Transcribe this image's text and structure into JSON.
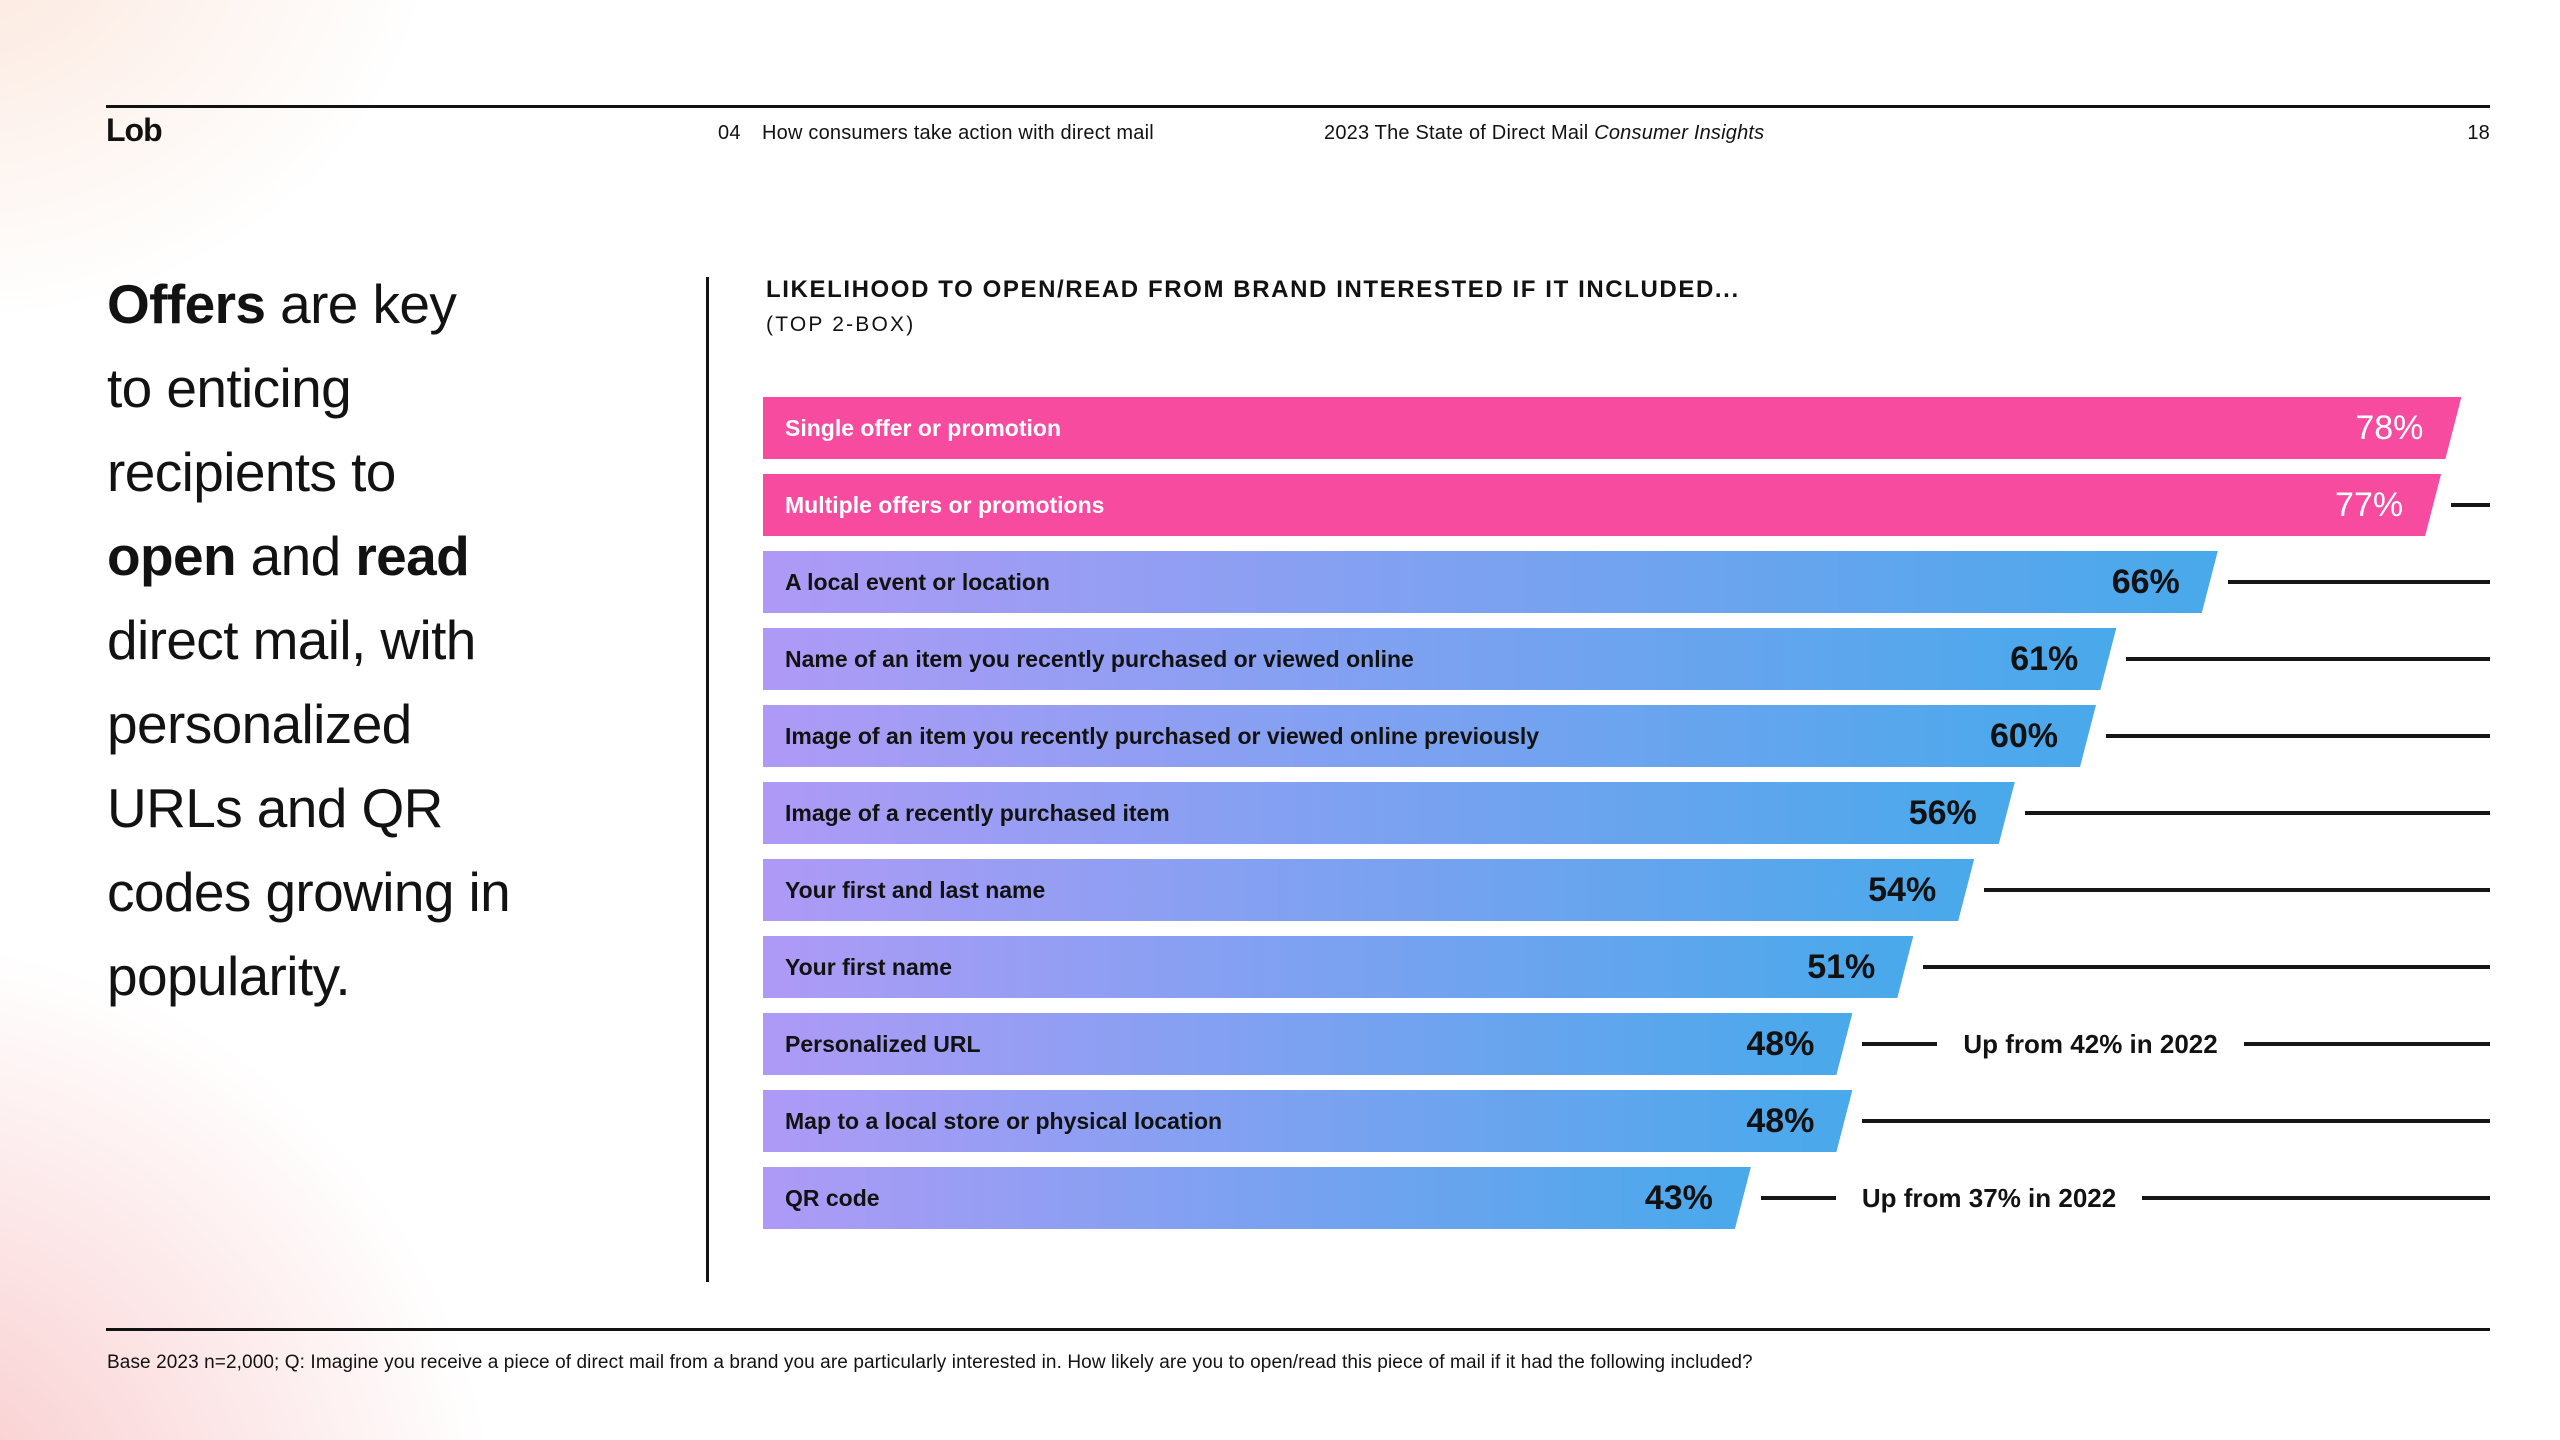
{
  "header": {
    "logo": "Lob",
    "section_number": "04",
    "section_title": "How consumers take action with direct mail",
    "report_title": "2023 The State of Direct Mail",
    "report_title_italic": "Consumer Insights",
    "page_number": "18"
  },
  "headline": {
    "parts": [
      {
        "text": "Offers",
        "bold": true
      },
      {
        "text": " are key\nto enticing\nrecipients to\n",
        "bold": false
      },
      {
        "text": "open",
        "bold": true
      },
      {
        "text": " and ",
        "bold": false
      },
      {
        "text": "read",
        "bold": true
      },
      {
        "text": "\ndirect mail, with\npersonalized\nURLs and QR\ncodes growing in\npopularity.",
        "bold": false
      }
    ]
  },
  "chart_data": {
    "type": "bar",
    "orientation": "horizontal",
    "title": "LIKELIHOOD TO OPEN/READ FROM BRAND INTERESTED IF IT INCLUDED...",
    "subtitle": "(TOP 2-BOX)",
    "value_unit": "percent",
    "xlim": [
      0,
      78
    ],
    "grid": false,
    "legend": "none",
    "categories": [
      "Single offer or promotion",
      "Multiple offers or promotions",
      "A local event or location",
      "Name of an item you recently purchased or viewed online",
      "Image of an item you recently purchased or viewed online previously",
      "Image of a recently purchased item",
      "Your first and last name",
      "Your first name",
      "Personalized URL",
      "Map to a local store or physical location",
      "QR code"
    ],
    "values": [
      78,
      77,
      66,
      61,
      60,
      56,
      54,
      51,
      48,
      48,
      43
    ],
    "value_labels": [
      "78%",
      "77%",
      "66%",
      "61%",
      "60%",
      "56%",
      "54%",
      "51%",
      "48%",
      "48%",
      "43%"
    ],
    "highlighted_pink_rows": [
      0,
      1
    ],
    "annotations": [
      {
        "row_index": 8,
        "text": "Up from 42% in 2022"
      },
      {
        "row_index": 10,
        "text": "Up from 37% in 2022"
      }
    ]
  },
  "footer": {
    "note": "Base 2023 n=2,000; Q: Imagine you receive a piece of direct mail from a brand you are particularly interested in. How likely are you to open/read this piece of mail if it had the following included?"
  },
  "colors": {
    "pink": "#F74B9F",
    "gradient_purple": "#AE9AF6",
    "gradient_blue": "#48A9EB",
    "ink": "#121212",
    "corner_glow_pink": "#F8C3C5"
  }
}
